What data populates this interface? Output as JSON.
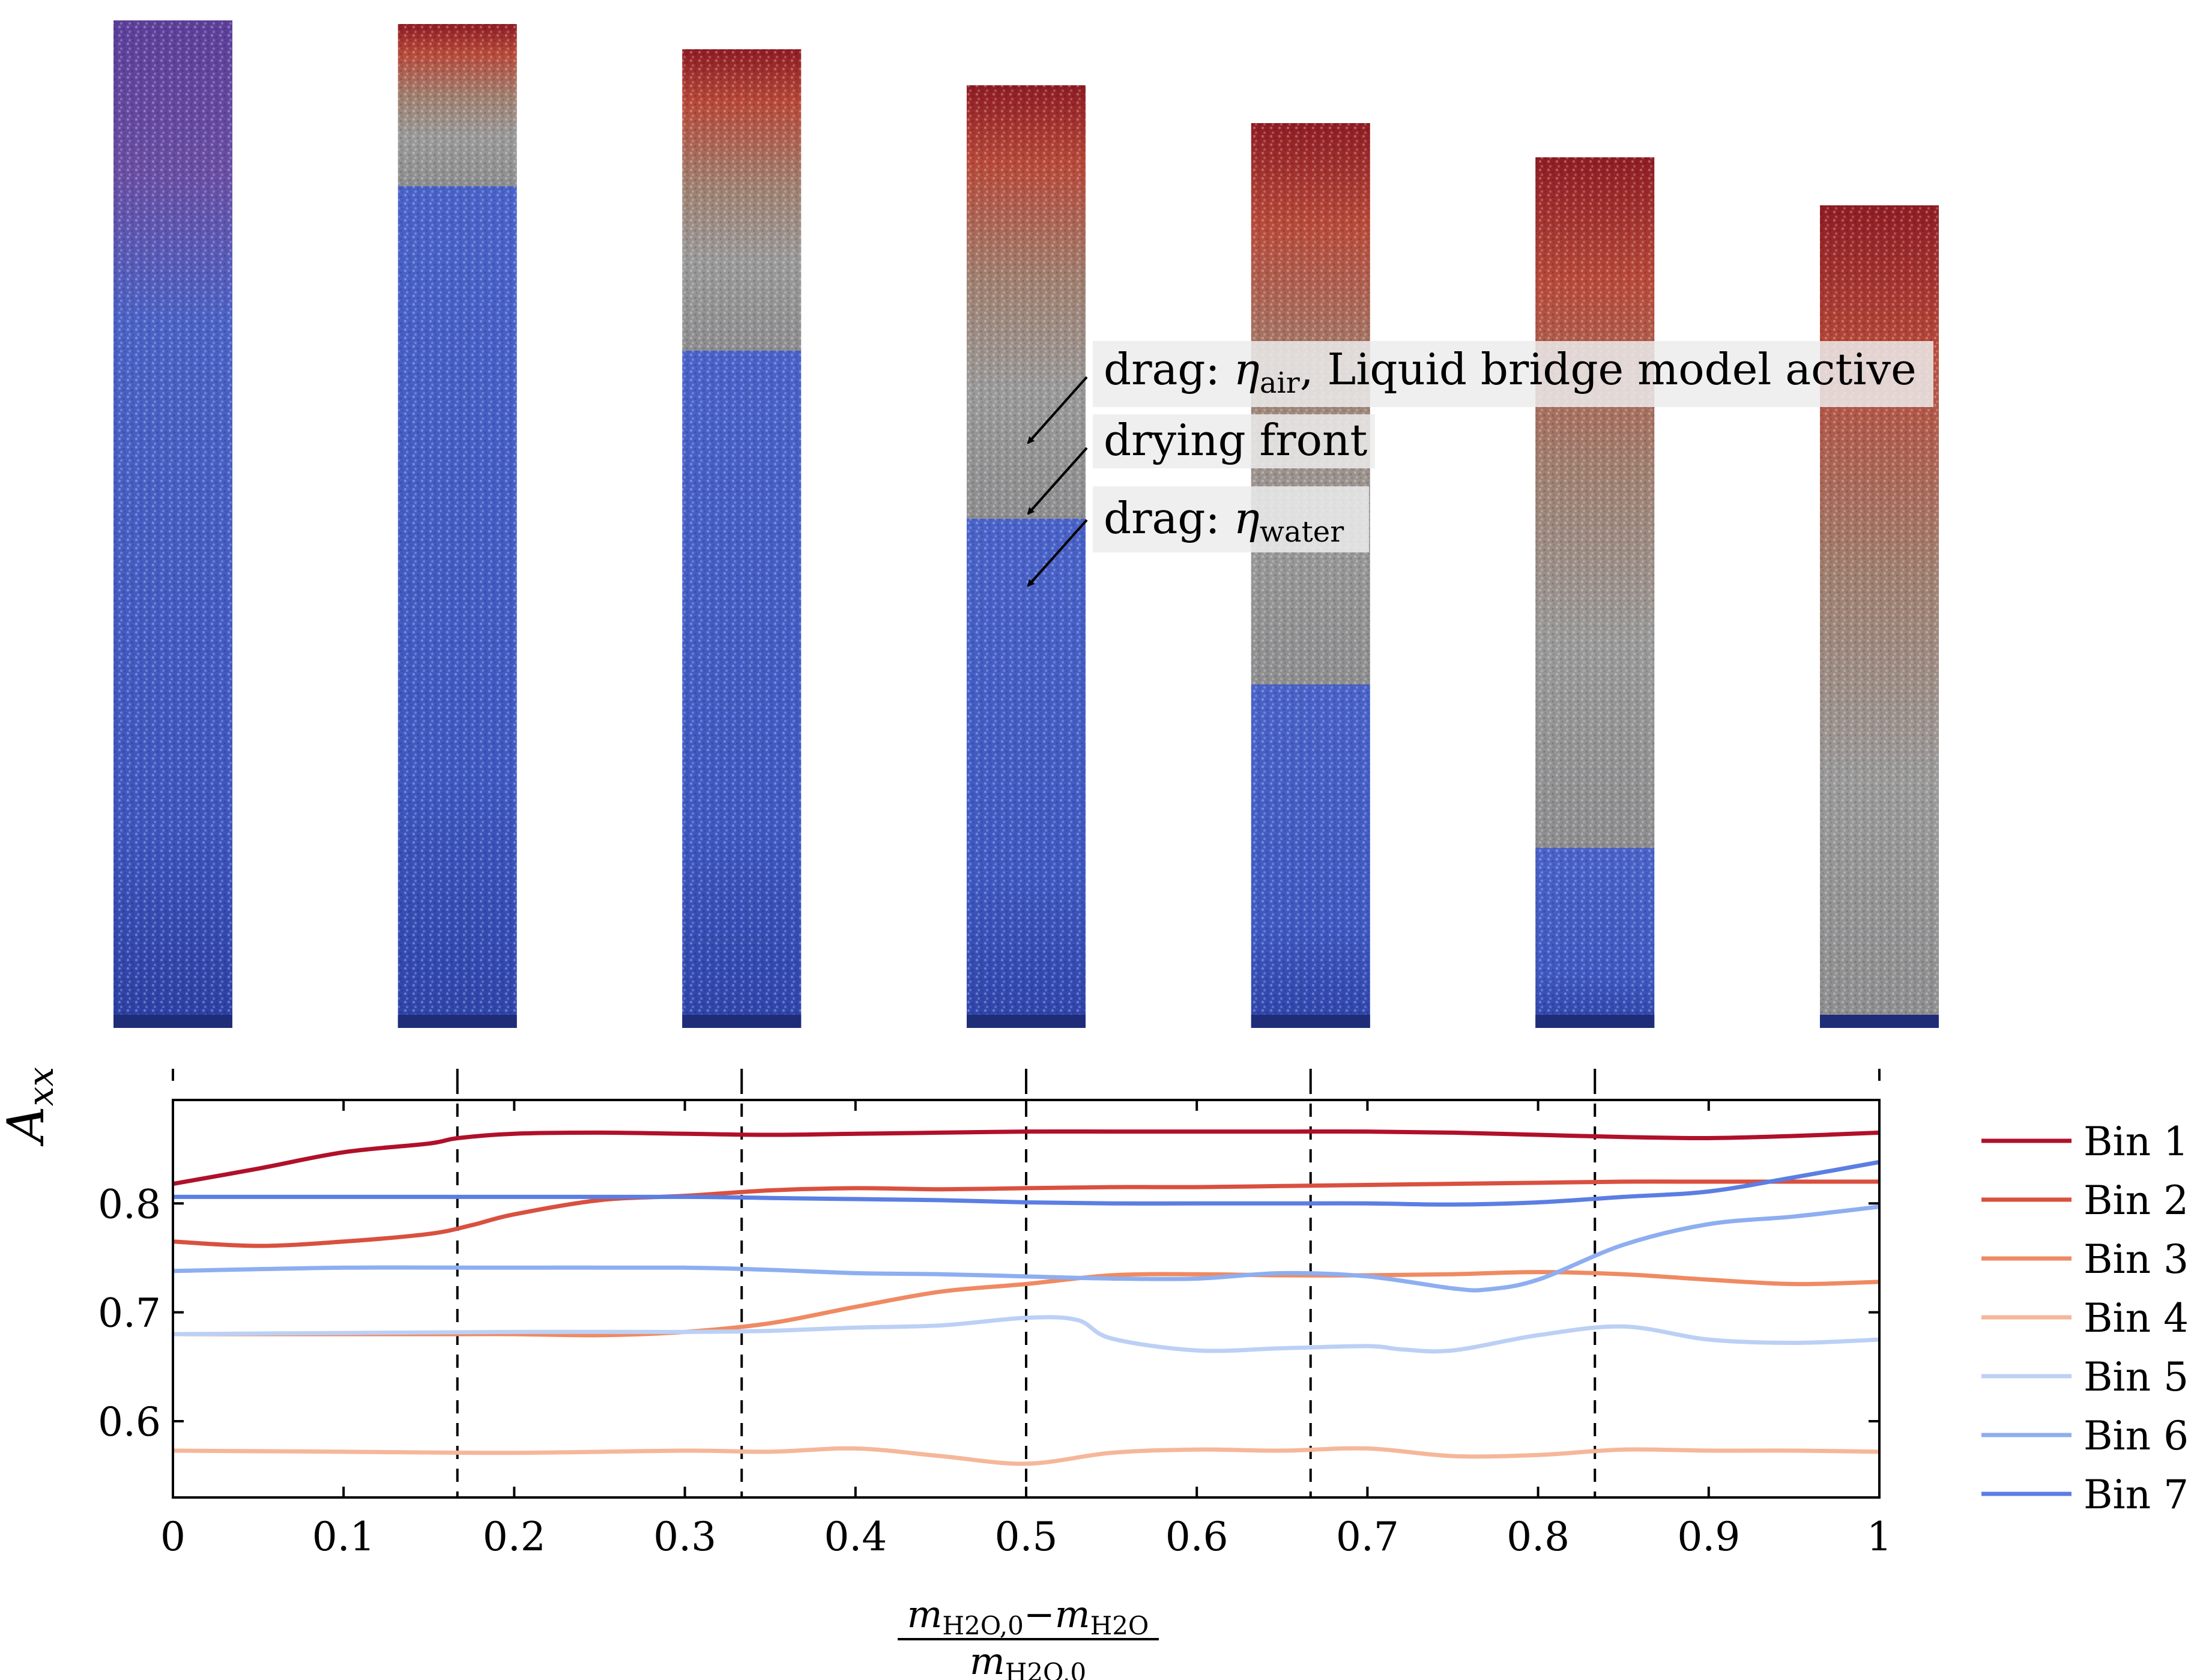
{
  "annotations": {
    "drag_air_prefix": "drag: ",
    "drag_air_symbol": "η",
    "drag_air_subscript": "air",
    "drag_air_suffix": ", Liquid bridge model active",
    "drying_front": "drying front",
    "drag_water_prefix": "drag: ",
    "drag_water_symbol": "η",
    "drag_water_subscript": "water"
  },
  "colors": {
    "bin1": "#b0102a",
    "bin2": "#d9503f",
    "bin3": "#ef8a62",
    "bin4": "#f5b79a",
    "bin5": "#bcd0f5",
    "bin6": "#8daef0",
    "bin7": "#5b7ee3",
    "packing_wet": "#4a63c9",
    "packing_dry": "#9a9a9a"
  },
  "snapshots": {
    "count": 7,
    "drying_fraction_tick_marks": [
      0,
      0.1667,
      0.3333,
      0.5,
      0.6667,
      0.8333,
      1
    ]
  },
  "chart_data": {
    "type": "line",
    "title": "",
    "xlabel": {
      "numerator_a": "m",
      "numerator_a_sub": "H2O,0",
      "minus": "−",
      "numerator_b": "m",
      "numerator_b_sub": "H2O",
      "denominator": "m",
      "denominator_sub": "H2O,0"
    },
    "ylabel": {
      "main": "A",
      "sub": "xx"
    },
    "xlim": [
      0,
      1
    ],
    "ylim": [
      0.53,
      0.895
    ],
    "xticks": [
      "0",
      "0.1",
      "0.2",
      "0.3",
      "0.4",
      "0.5",
      "0.6",
      "0.7",
      "0.8",
      "0.9",
      "1"
    ],
    "yticks": [
      "0.6",
      "0.7",
      "0.8"
    ],
    "vlines_dashed": [
      0.1667,
      0.3333,
      0.5,
      0.6667,
      0.8333
    ],
    "legend_position": "right",
    "series": [
      {
        "name": "Bin 1",
        "color": "#b0102a",
        "x": [
          0,
          0.05,
          0.1,
          0.15,
          0.167,
          0.2,
          0.25,
          0.3,
          0.35,
          0.4,
          0.45,
          0.5,
          0.55,
          0.6,
          0.65,
          0.7,
          0.75,
          0.8,
          0.85,
          0.9,
          0.95,
          1
        ],
        "y": [
          0.818,
          0.832,
          0.847,
          0.855,
          0.86,
          0.864,
          0.865,
          0.864,
          0.863,
          0.864,
          0.865,
          0.866,
          0.866,
          0.866,
          0.866,
          0.866,
          0.865,
          0.863,
          0.861,
          0.86,
          0.862,
          0.865
        ]
      },
      {
        "name": "Bin 2",
        "color": "#d9503f",
        "x": [
          0,
          0.05,
          0.1,
          0.15,
          0.175,
          0.2,
          0.25,
          0.3,
          0.35,
          0.4,
          0.45,
          0.5,
          0.55,
          0.6,
          0.65,
          0.7,
          0.75,
          0.8,
          0.85,
          0.9,
          0.95,
          1
        ],
        "y": [
          0.765,
          0.761,
          0.765,
          0.772,
          0.78,
          0.79,
          0.803,
          0.807,
          0.812,
          0.814,
          0.813,
          0.814,
          0.815,
          0.815,
          0.816,
          0.817,
          0.818,
          0.819,
          0.82,
          0.82,
          0.82,
          0.82
        ]
      },
      {
        "name": "Bin 3",
        "color": "#ef8a62",
        "x": [
          0,
          0.1,
          0.167,
          0.2,
          0.25,
          0.3,
          0.35,
          0.4,
          0.45,
          0.5,
          0.55,
          0.6,
          0.65,
          0.7,
          0.75,
          0.8,
          0.85,
          0.9,
          0.95,
          1
        ],
        "y": [
          0.68,
          0.68,
          0.68,
          0.68,
          0.679,
          0.682,
          0.69,
          0.705,
          0.719,
          0.726,
          0.734,
          0.735,
          0.734,
          0.734,
          0.735,
          0.737,
          0.735,
          0.73,
          0.726,
          0.728
        ]
      },
      {
        "name": "Bin 4",
        "color": "#f5b79a",
        "x": [
          0,
          0.1,
          0.2,
          0.3,
          0.35,
          0.4,
          0.45,
          0.5,
          0.55,
          0.6,
          0.65,
          0.7,
          0.75,
          0.8,
          0.85,
          0.9,
          0.95,
          1
        ],
        "y": [
          0.573,
          0.572,
          0.571,
          0.573,
          0.572,
          0.575,
          0.568,
          0.561,
          0.571,
          0.574,
          0.573,
          0.575,
          0.568,
          0.569,
          0.574,
          0.573,
          0.573,
          0.572
        ]
      },
      {
        "name": "Bin 5",
        "color": "#bcd0f5",
        "x": [
          0,
          0.1,
          0.2,
          0.3,
          0.35,
          0.4,
          0.45,
          0.5,
          0.53,
          0.55,
          0.6,
          0.65,
          0.7,
          0.72,
          0.75,
          0.8,
          0.85,
          0.9,
          0.95,
          1
        ],
        "y": [
          0.68,
          0.681,
          0.682,
          0.682,
          0.683,
          0.686,
          0.688,
          0.695,
          0.693,
          0.676,
          0.665,
          0.667,
          0.669,
          0.666,
          0.665,
          0.679,
          0.687,
          0.675,
          0.672,
          0.675
        ]
      },
      {
        "name": "Bin 6",
        "color": "#8daef0",
        "x": [
          0,
          0.1,
          0.2,
          0.3,
          0.35,
          0.4,
          0.45,
          0.5,
          0.55,
          0.6,
          0.65,
          0.7,
          0.75,
          0.77,
          0.8,
          0.85,
          0.9,
          0.95,
          1
        ],
        "y": [
          0.738,
          0.741,
          0.741,
          0.741,
          0.739,
          0.736,
          0.735,
          0.733,
          0.731,
          0.731,
          0.736,
          0.733,
          0.722,
          0.721,
          0.73,
          0.762,
          0.781,
          0.788,
          0.797
        ]
      },
      {
        "name": "Bin 7",
        "color": "#5b7ee3",
        "x": [
          0,
          0.1,
          0.2,
          0.3,
          0.35,
          0.4,
          0.45,
          0.5,
          0.55,
          0.6,
          0.65,
          0.7,
          0.75,
          0.8,
          0.85,
          0.9,
          0.95,
          1
        ],
        "y": [
          0.806,
          0.806,
          0.806,
          0.806,
          0.805,
          0.804,
          0.803,
          0.801,
          0.8,
          0.8,
          0.8,
          0.8,
          0.799,
          0.801,
          0.806,
          0.811,
          0.824,
          0.838
        ]
      }
    ]
  }
}
